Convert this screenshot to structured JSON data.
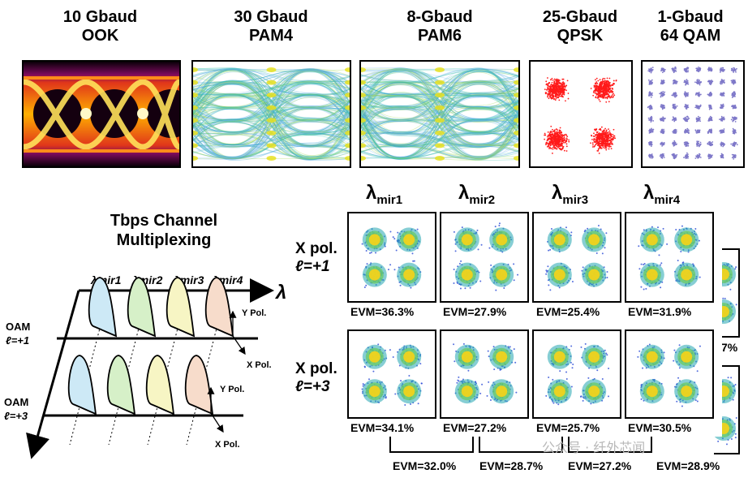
{
  "top_panels": [
    {
      "line1": "10 Gbaud",
      "line2": "OOK",
      "kind": "eye-ook"
    },
    {
      "line1": "30 Gbaud",
      "line2": "PAM4",
      "kind": "eye-pam4"
    },
    {
      "line1": "8-Gbaud",
      "line2": "PAM6",
      "kind": "eye-pam6"
    },
    {
      "line1": "25-Gbaud",
      "line2": "QPSK",
      "kind": "qpsk"
    },
    {
      "line1": "1-Gbaud",
      "line2": "64 QAM",
      "kind": "qam64"
    }
  ],
  "diagram": {
    "title_line1": "Tbps Channel",
    "title_line2": "Multiplexing",
    "lambda_axis": "λ",
    "lambda_labels": [
      "λmir1",
      "λmir2",
      "λmir3",
      "λmir4"
    ],
    "oam_upper_line1": "OAM",
    "oam_upper_line2": "ℓ=+1",
    "oam_lower_line1": "OAM",
    "oam_lower_line2": "ℓ=+3",
    "y_pol": "Y Pol.",
    "x_pol": "X Pol.",
    "pulse_colors": [
      "#cde9f6",
      "#d6f0c8",
      "#f7f5c4",
      "#f7dccb"
    ]
  },
  "constellations": {
    "column_headers": [
      {
        "main": "λ",
        "sub": "mir1"
      },
      {
        "main": "λ",
        "sub": "mir2"
      },
      {
        "main": "λ",
        "sub": "mir3"
      },
      {
        "main": "λ",
        "sub": "mir4"
      }
    ],
    "rows": [
      {
        "label_line1": "X pol.",
        "label_line2": "ℓ=+1",
        "evm": [
          "EVM=36.3%",
          "EVM=27.9%",
          "EVM=25.4%",
          "EVM=31.9%"
        ]
      },
      {
        "label_line1": "X pol.",
        "label_line2": "ℓ=+3",
        "evm": [
          "EVM=34.1%",
          "EVM=27.2%",
          "EVM=25.7%",
          "EVM=30.5%"
        ]
      }
    ],
    "back_row_evm": [
      "EVM=32.0%",
      "EVM=28.7%",
      "EVM=27.2%",
      "EVM=28.9%"
    ],
    "back_row_partial": "7%"
  },
  "watermark": "公众号 · 纤外芯闻"
}
